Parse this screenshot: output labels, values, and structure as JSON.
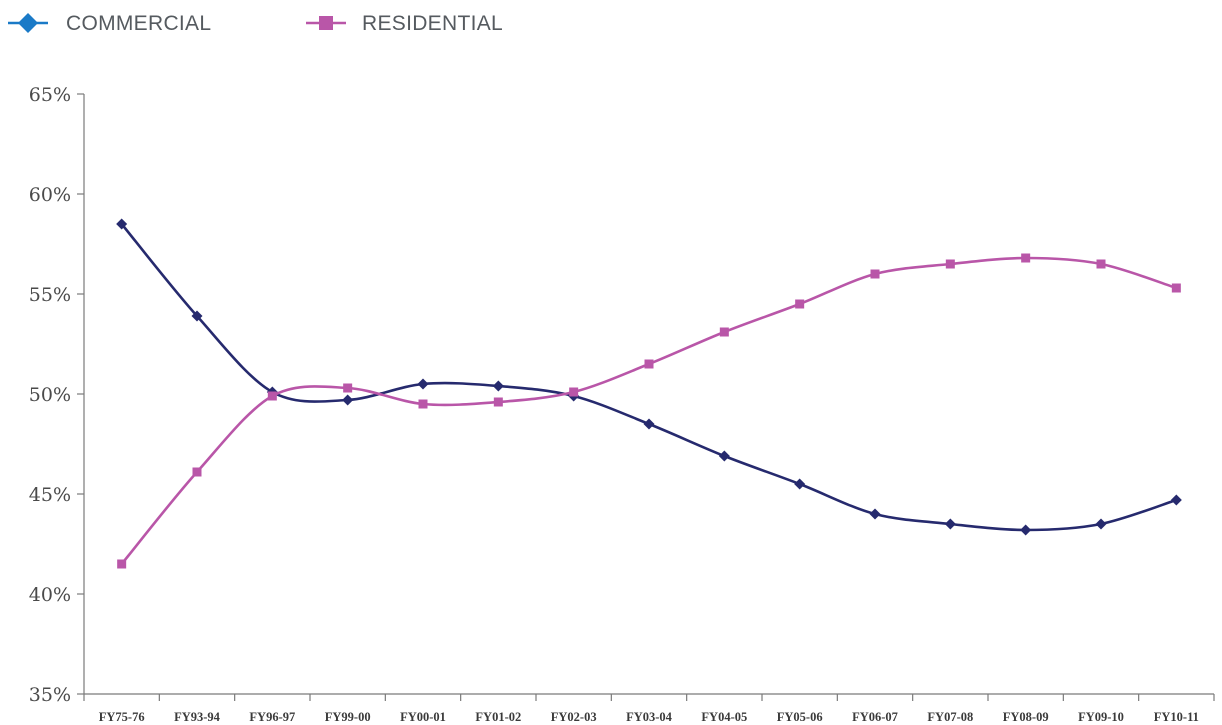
{
  "chart_data": {
    "type": "line",
    "categories": [
      "FY75-76",
      "FY93-94",
      "FY96-97",
      "FY99-00",
      "FY00-01",
      "FY01-02",
      "FY02-03",
      "FY03-04",
      "FY04-05",
      "FY05-06",
      "FY06-07",
      "FY07-08",
      "FY08-09",
      "FY09-10",
      "FY10-11"
    ],
    "series": [
      {
        "name": "COMMERCIAL",
        "marker": "diamond",
        "color": "#262a6e",
        "legend_color": "#1a7ac7",
        "values": [
          58.5,
          53.9,
          50.1,
          49.7,
          50.5,
          50.4,
          49.9,
          48.5,
          46.9,
          45.5,
          44.0,
          43.5,
          43.2,
          43.5,
          44.7
        ]
      },
      {
        "name": "RESIDENTIAL",
        "marker": "square",
        "color": "#b956a8",
        "legend_color": "#b956a8",
        "values": [
          41.5,
          46.1,
          49.9,
          50.3,
          49.5,
          49.6,
          50.1,
          51.5,
          53.1,
          54.5,
          56.0,
          56.5,
          56.8,
          56.5,
          55.3
        ]
      }
    ],
    "ylim": [
      35,
      65
    ],
    "y_ticks": [
      "35%",
      "40%",
      "45%",
      "50%",
      "55%",
      "60%",
      "65%"
    ],
    "y_tick_values": [
      35,
      40,
      45,
      50,
      55,
      60,
      65
    ],
    "grid": false,
    "legend_position": "top-left",
    "title": "",
    "xlabel": "",
    "ylabel": ""
  }
}
